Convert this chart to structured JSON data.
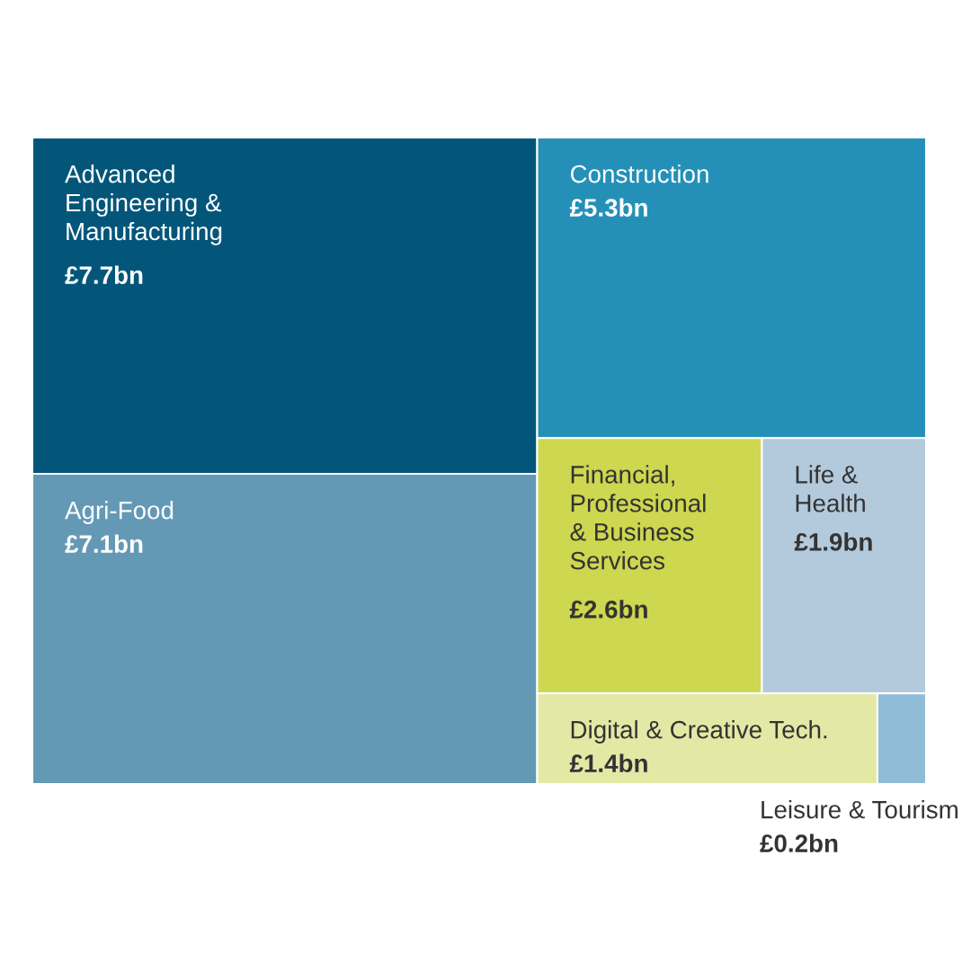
{
  "chart_data": {
    "type": "other",
    "categories": [
      "Advanced\nEngineering &\nManufacturing",
      "Agri-Food",
      "Construction",
      "Financial,\nProfessional\n& Business\nServices",
      "Life &\nHealth",
      "Digital & Creative Tech.",
      "Leisure & Tourism"
    ],
    "values": [
      7.7,
      7.1,
      5.3,
      2.6,
      1.9,
      1.4,
      0.2
    ],
    "value_labels": [
      "£7.7bn",
      "£7.1bn",
      "£5.3bn",
      "£2.6bn",
      "£1.9bn",
      "£1.4bn",
      "£0.2bn"
    ],
    "colors": [
      "#03567a",
      "#6499b5",
      "#2490b8",
      "#cdd74f",
      "#b3cadd",
      "#e3e9a5",
      "#8fbcd6"
    ]
  }
}
